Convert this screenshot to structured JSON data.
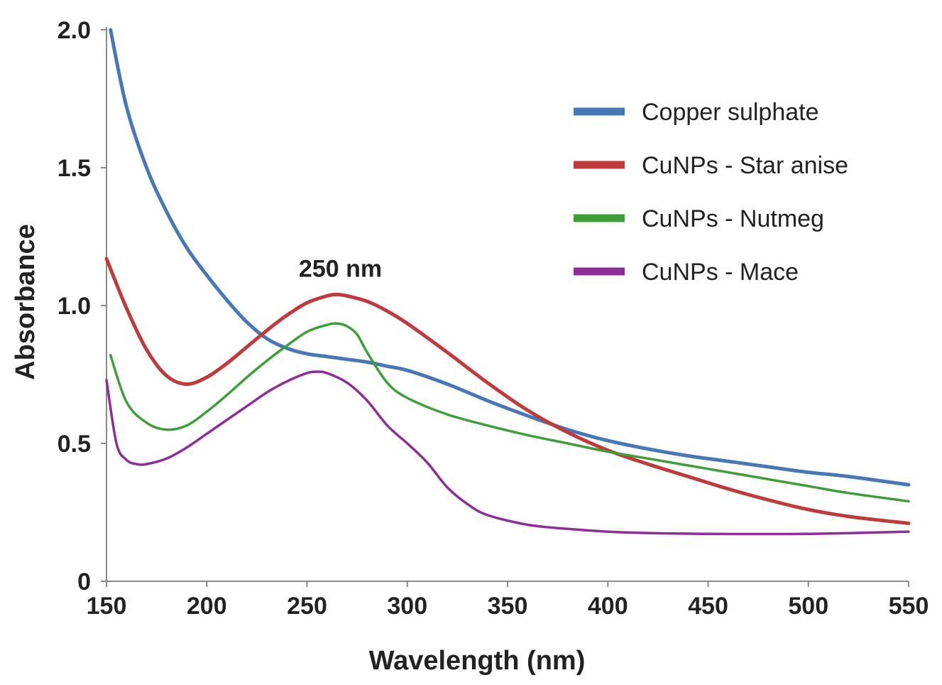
{
  "chart_data": {
    "type": "line",
    "title": "",
    "xlabel": "Wavelength (nm)",
    "ylabel": "Absorbance",
    "xlim": [
      150,
      550
    ],
    "ylim": [
      0,
      2.0
    ],
    "x_ticks": [
      150,
      200,
      250,
      300,
      350,
      400,
      450,
      500,
      550
    ],
    "x_tick_labels": [
      "150",
      "200",
      "250",
      "300",
      "350",
      "400",
      "450",
      "500",
      "550"
    ],
    "y_ticks": [
      0,
      0.5,
      1.0,
      1.5,
      2.0
    ],
    "y_tick_labels": [
      "0",
      "0.5",
      "1.0",
      "1.5",
      "2.0"
    ],
    "grid": false,
    "legend_position": "top-right",
    "annotations": [
      {
        "text": "250 nm",
        "x": 250,
        "y": 1.12
      }
    ],
    "series": [
      {
        "name": "Copper sulphate",
        "color": "#4677B8",
        "x": [
          152,
          160,
          170,
          180,
          190,
          200,
          210,
          220,
          230,
          240,
          250,
          260,
          270,
          280,
          290,
          300,
          320,
          340,
          360,
          380,
          400,
          420,
          440,
          460,
          480,
          500,
          520,
          550
        ],
        "y": [
          2.0,
          1.72,
          1.5,
          1.34,
          1.21,
          1.11,
          1.02,
          0.94,
          0.88,
          0.845,
          0.825,
          0.815,
          0.805,
          0.795,
          0.78,
          0.765,
          0.715,
          0.655,
          0.6,
          0.55,
          0.51,
          0.48,
          0.455,
          0.435,
          0.415,
          0.395,
          0.38,
          0.35
        ]
      },
      {
        "name": "CuNPs - Star anise",
        "color": "#C0393B",
        "x": [
          150,
          160,
          170,
          180,
          190,
          200,
          210,
          220,
          230,
          240,
          250,
          260,
          265,
          270,
          280,
          290,
          300,
          320,
          340,
          360,
          380,
          400,
          420,
          440,
          460,
          480,
          500,
          520,
          550
        ],
        "y": [
          1.17,
          0.99,
          0.84,
          0.745,
          0.715,
          0.74,
          0.79,
          0.85,
          0.91,
          0.965,
          1.01,
          1.035,
          1.04,
          1.035,
          1.015,
          0.98,
          0.935,
          0.83,
          0.72,
          0.62,
          0.54,
          0.475,
          0.425,
          0.38,
          0.335,
          0.295,
          0.26,
          0.235,
          0.21
        ]
      },
      {
        "name": "CuNPs - Nutmeg",
        "color": "#3C9F38",
        "x": [
          152,
          160,
          170,
          180,
          190,
          200,
          210,
          220,
          230,
          240,
          250,
          260,
          265,
          270,
          275,
          280,
          290,
          300,
          320,
          340,
          360,
          380,
          400,
          420,
          440,
          460,
          480,
          500,
          520,
          550
        ],
        "y": [
          0.82,
          0.65,
          0.575,
          0.55,
          0.565,
          0.615,
          0.675,
          0.74,
          0.8,
          0.855,
          0.905,
          0.93,
          0.935,
          0.925,
          0.895,
          0.83,
          0.72,
          0.665,
          0.605,
          0.565,
          0.53,
          0.5,
          0.47,
          0.445,
          0.42,
          0.395,
          0.37,
          0.345,
          0.32,
          0.29
        ]
      },
      {
        "name": "CuNPs - Mace",
        "color": "#8E2C9A",
        "x": [
          150,
          155,
          160,
          165,
          170,
          180,
          190,
          200,
          210,
          220,
          230,
          240,
          250,
          255,
          260,
          270,
          280,
          290,
          300,
          310,
          320,
          330,
          340,
          360,
          380,
          400,
          420,
          450,
          500,
          550
        ],
        "y": [
          0.73,
          0.5,
          0.44,
          0.425,
          0.425,
          0.445,
          0.485,
          0.535,
          0.585,
          0.635,
          0.685,
          0.725,
          0.755,
          0.76,
          0.755,
          0.72,
          0.655,
          0.565,
          0.5,
          0.43,
          0.34,
          0.28,
          0.24,
          0.205,
          0.19,
          0.18,
          0.175,
          0.172,
          0.172,
          0.18
        ]
      }
    ]
  }
}
